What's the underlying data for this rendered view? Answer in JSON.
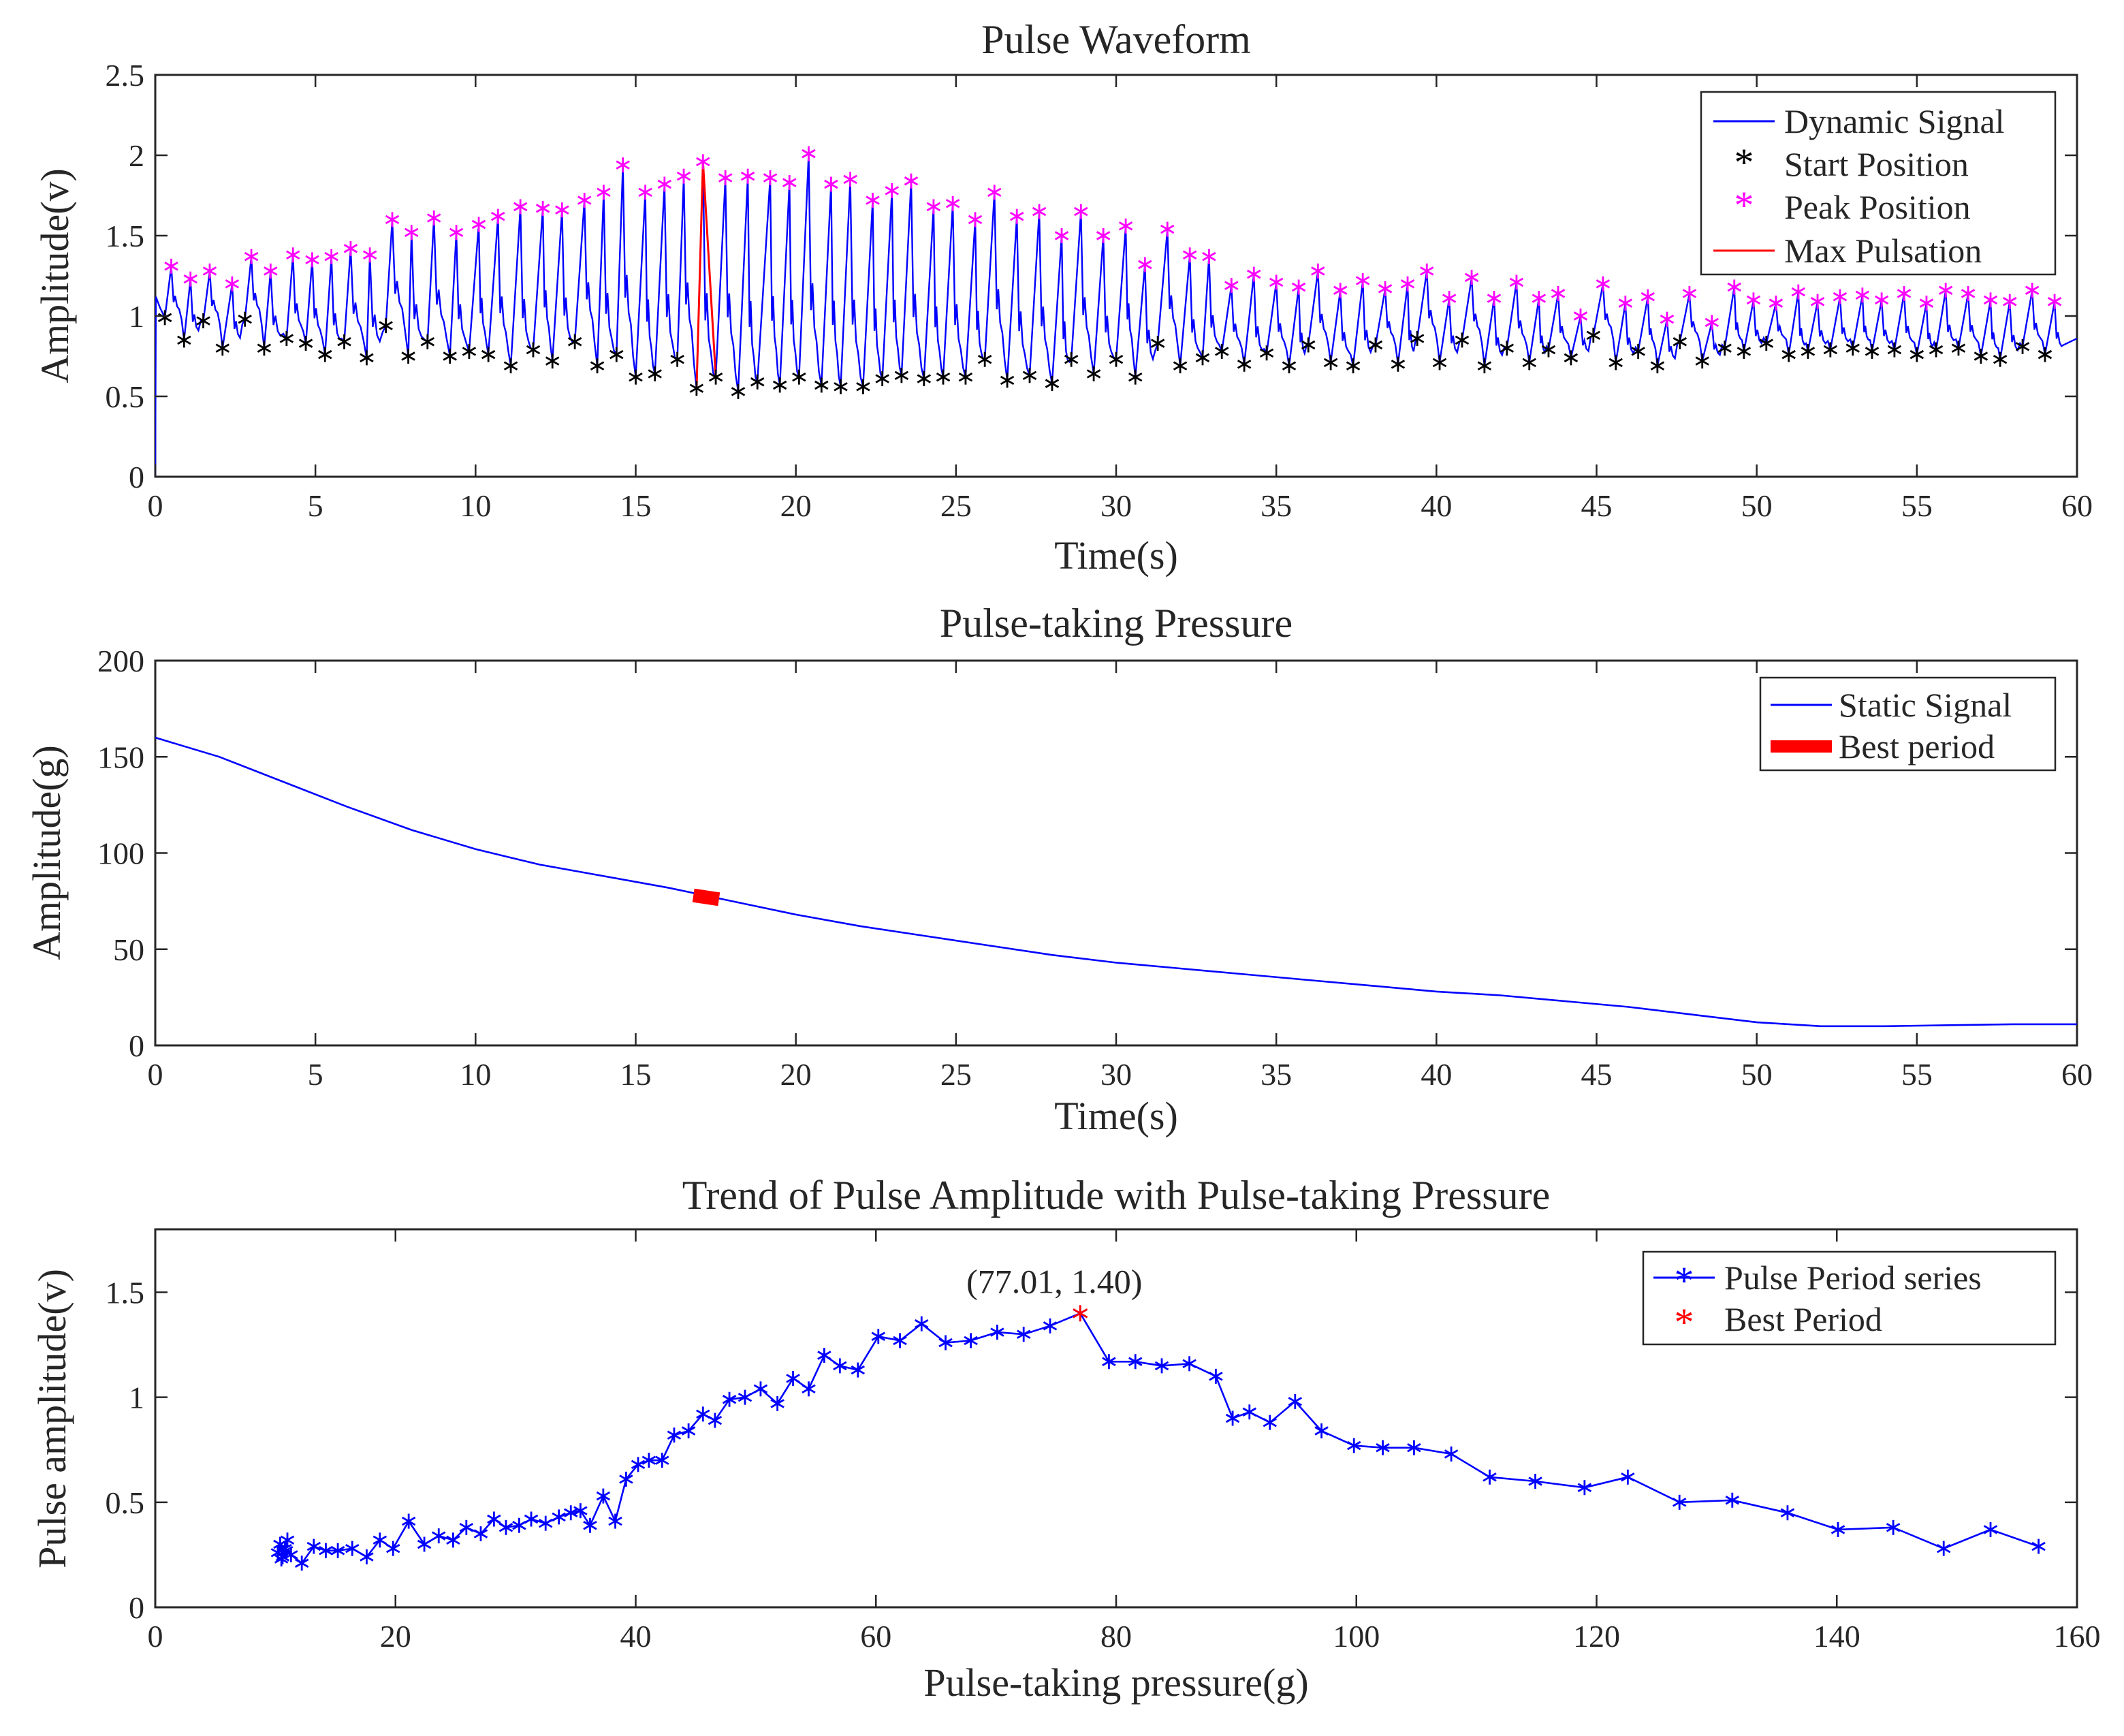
{
  "chart_data": [
    {
      "id": "waveform",
      "type": "line",
      "title": "Pulse Waveform",
      "xlabel": "Time(s)",
      "ylabel": "Amplitude(v)",
      "xlim": [
        0,
        60
      ],
      "ylim": [
        0,
        2.5
      ],
      "xticks": [
        0,
        5,
        10,
        15,
        20,
        25,
        30,
        35,
        40,
        45,
        50,
        55,
        60
      ],
      "xtick_labels": [
        "0",
        "5",
        "10",
        "15",
        "20",
        "25",
        "30",
        "35",
        "40",
        "45",
        "50",
        "55",
        "60"
      ],
      "yticks": [
        0,
        0.5,
        1,
        1.5,
        2,
        2.5
      ],
      "ytick_labels": [
        "0",
        "0.5",
        "1",
        "1.5",
        "2",
        "2.5"
      ],
      "legend": [
        {
          "label": "Dynamic Signal",
          "color": "#0000ff",
          "marker": "line"
        },
        {
          "label": "Start Position",
          "color": "#000000",
          "marker": "star"
        },
        {
          "label": "Peak Position",
          "color": "#ff00ff",
          "marker": "star"
        },
        {
          "label": "Max Pulsation",
          "color": "#ff0000",
          "marker": "line"
        }
      ],
      "legend_position": "top-right",
      "series": [
        {
          "name": "Peak Position",
          "t": [
            0.5,
            1.1,
            1.7,
            2.4,
            3.0,
            3.6,
            4.3,
            4.9,
            5.5,
            6.1,
            6.7,
            7.4,
            8.0,
            8.7,
            9.4,
            10.1,
            10.7,
            11.4,
            12.1,
            12.7,
            13.4,
            14.0,
            14.6,
            15.3,
            15.9,
            16.5,
            17.1,
            17.8,
            18.5,
            19.2,
            19.8,
            20.4,
            21.1,
            21.7,
            22.4,
            23.0,
            23.6,
            24.3,
            24.9,
            25.6,
            26.2,
            26.9,
            27.6,
            28.3,
            28.9,
            29.6,
            30.3,
            30.9,
            31.6,
            32.3,
            32.9,
            33.6,
            34.3,
            35.0,
            35.7,
            36.3,
            37.0,
            37.7,
            38.4,
            39.1,
            39.7,
            40.4,
            41.1,
            41.8,
            42.5,
            43.2,
            43.8,
            44.5,
            45.2,
            45.9,
            46.6,
            47.2,
            47.9,
            48.6,
            49.3,
            49.9,
            50.6,
            51.3,
            51.9,
            52.6,
            53.3,
            53.9,
            54.6,
            55.3,
            55.9,
            56.6,
            57.3,
            57.9,
            58.6,
            59.3
          ],
          "v": [
            1.31,
            1.23,
            1.28,
            1.2,
            1.37,
            1.28,
            1.38,
            1.35,
            1.37,
            1.42,
            1.38,
            1.6,
            1.52,
            1.61,
            1.52,
            1.57,
            1.62,
            1.68,
            1.67,
            1.66,
            1.72,
            1.77,
            1.94,
            1.77,
            1.82,
            1.87,
            1.96,
            1.86,
            1.87,
            1.86,
            1.83,
            2.01,
            1.82,
            1.85,
            1.72,
            1.78,
            1.84,
            1.68,
            1.7,
            1.6,
            1.77,
            1.62,
            1.65,
            1.5,
            1.65,
            1.5,
            1.56,
            1.32,
            1.54,
            1.38,
            1.37,
            1.19,
            1.26,
            1.21,
            1.18,
            1.28,
            1.16,
            1.22,
            1.17,
            1.2,
            1.28,
            1.11,
            1.24,
            1.11,
            1.21,
            1.11,
            1.14,
            1.0,
            1.2,
            1.08,
            1.12,
            0.98,
            1.14,
            0.96,
            1.18,
            1.1,
            1.08,
            1.15,
            1.09,
            1.12,
            1.13,
            1.1,
            1.14,
            1.08,
            1.16,
            1.14,
            1.1,
            1.09,
            1.16,
            1.09
          ]
        },
        {
          "name": "Start Position",
          "t": [
            0.3,
            0.9,
            1.5,
            2.1,
            2.8,
            3.4,
            4.1,
            4.7,
            5.3,
            5.9,
            6.6,
            7.2,
            7.9,
            8.5,
            9.2,
            9.8,
            10.4,
            11.1,
            11.8,
            12.4,
            13.1,
            13.8,
            14.4,
            15.0,
            15.6,
            16.3,
            16.9,
            17.5,
            18.2,
            18.8,
            19.5,
            20.1,
            20.8,
            21.4,
            22.1,
            22.7,
            23.3,
            24.0,
            24.6,
            25.3,
            25.9,
            26.6,
            27.3,
            28.0,
            28.6,
            29.3,
            30.0,
            30.6,
            31.3,
            32.0,
            32.7,
            33.3,
            34.0,
            34.7,
            35.4,
            36.0,
            36.7,
            37.4,
            38.1,
            38.8,
            39.4,
            40.1,
            40.8,
            41.5,
            42.2,
            42.9,
            43.5,
            44.2,
            44.9,
            45.6,
            46.3,
            46.9,
            47.6,
            48.3,
            49.0,
            49.6,
            50.3,
            51.0,
            51.6,
            52.3,
            53.0,
            53.6,
            54.3,
            55.0,
            55.6,
            56.3,
            57.0,
            57.6,
            58.3,
            59.0
          ],
          "v": [
            0.99,
            0.85,
            0.97,
            0.8,
            0.98,
            0.8,
            0.86,
            0.83,
            0.76,
            0.84,
            0.74,
            0.94,
            0.75,
            0.84,
            0.75,
            0.78,
            0.76,
            0.69,
            0.79,
            0.72,
            0.84,
            0.69,
            0.76,
            0.62,
            0.64,
            0.73,
            0.55,
            0.62,
            0.53,
            0.59,
            0.57,
            0.62,
            0.57,
            0.56,
            0.56,
            0.61,
            0.63,
            0.61,
            0.62,
            0.62,
            0.73,
            0.6,
            0.63,
            0.58,
            0.73,
            0.64,
            0.73,
            0.62,
            0.83,
            0.69,
            0.74,
            0.78,
            0.7,
            0.77,
            0.69,
            0.82,
            0.71,
            0.69,
            0.82,
            0.7,
            0.86,
            0.71,
            0.85,
            0.69,
            0.8,
            0.71,
            0.79,
            0.74,
            0.88,
            0.71,
            0.78,
            0.69,
            0.84,
            0.72,
            0.8,
            0.78,
            0.83,
            0.76,
            0.78,
            0.79,
            0.8,
            0.78,
            0.79,
            0.76,
            0.79,
            0.8,
            0.75,
            0.73,
            0.81,
            0.76
          ]
        },
        {
          "name": "Max Pulsation",
          "t": [
            16.9,
            17.1,
            17.5
          ],
          "v": [
            0.55,
            1.96,
            0.62
          ]
        }
      ]
    },
    {
      "id": "pressure",
      "type": "line",
      "title": "Pulse-taking Pressure",
      "xlabel": "Time(s)",
      "ylabel": "Amplitude(g)",
      "xlim": [
        0,
        60
      ],
      "ylim": [
        0,
        200
      ],
      "xticks": [
        0,
        5,
        10,
        15,
        20,
        25,
        30,
        35,
        40,
        45,
        50,
        55,
        60
      ],
      "xtick_labels": [
        "0",
        "5",
        "10",
        "15",
        "20",
        "25",
        "30",
        "35",
        "40",
        "45",
        "50",
        "55",
        "60"
      ],
      "yticks": [
        0,
        50,
        100,
        150,
        200
      ],
      "ytick_labels": [
        "0",
        "50",
        "100",
        "150",
        "200"
      ],
      "legend": [
        {
          "label": "Static Signal",
          "color": "#0000ff",
          "marker": "line"
        },
        {
          "label": "Best period",
          "color": "#ff0000",
          "marker": "thick-line"
        }
      ],
      "legend_position": "top-right",
      "series": [
        {
          "name": "Static Signal",
          "x": [
            0,
            2,
            4,
            6,
            8,
            10,
            12,
            14,
            16,
            18,
            20,
            22,
            24,
            26,
            28,
            30,
            32,
            34,
            36,
            38,
            40,
            42,
            44,
            46,
            48,
            50,
            52,
            54,
            56,
            58,
            60
          ],
          "y": [
            160,
            150,
            137,
            124,
            112,
            102,
            94,
            88,
            82,
            75,
            68,
            62,
            57,
            52,
            47,
            43,
            40,
            37,
            34,
            31,
            28,
            26,
            23,
            20,
            16,
            12,
            10,
            10,
            10.5,
            11,
            11
          ]
        },
        {
          "name": "Best period",
          "x": [
            16.8,
            17.6
          ],
          "y": [
            78,
            76
          ]
        }
      ]
    },
    {
      "id": "trend",
      "type": "line",
      "title": "Trend of Pulse Amplitude with Pulse-taking Pressure",
      "xlabel": "Pulse-taking pressure(g)",
      "ylabel": "Pulse amplitude(v)",
      "xlim": [
        0,
        160
      ],
      "ylim": [
        0,
        1.8
      ],
      "xticks": [
        0,
        20,
        40,
        60,
        80,
        100,
        120,
        140,
        160
      ],
      "xtick_labels": [
        "0",
        "20",
        "40",
        "60",
        "80",
        "100",
        "120",
        "140",
        "160"
      ],
      "yticks": [
        0,
        0.5,
        1,
        1.5
      ],
      "ytick_labels": [
        "0",
        "0.5",
        "1",
        "1.5"
      ],
      "legend": [
        {
          "label": "Pulse Period series",
          "color": "#0000ff",
          "marker": "star-line"
        },
        {
          "label": "Best Period",
          "color": "#ff0000",
          "marker": "star"
        }
      ],
      "legend_position": "top-right",
      "annotation": {
        "text": "(77.01, 1.40)",
        "x": 77.01,
        "y": 1.4
      },
      "series": [
        {
          "name": "Pulse Period series",
          "x": [
            10.2,
            10.4,
            10.6,
            10.8,
            11.0,
            10.5,
            10.9,
            11.3,
            12.2,
            13.2,
            14.2,
            15.2,
            16.4,
            17.6,
            18.7,
            19.8,
            21.1,
            22.4,
            23.6,
            24.8,
            25.9,
            27.1,
            28.2,
            29.2,
            30.3,
            31.3,
            32.5,
            33.6,
            34.6,
            35.4,
            36.2,
            37.3,
            38.3,
            39.2,
            40.2,
            41.1,
            42.2,
            43.2,
            44.4,
            45.6,
            46.6,
            47.8,
            49.1,
            50.4,
            51.8,
            53.1,
            54.4,
            55.7,
            57.0,
            58.5,
            60.2,
            62.0,
            63.8,
            65.8,
            67.9,
            70.1,
            72.3,
            74.5,
            77.01,
            79.4,
            81.6,
            83.8,
            86.1,
            88.3,
            89.7,
            91.1,
            92.8,
            94.9,
            97.1,
            99.8,
            102.2,
            104.8,
            107.9,
            111.1,
            114.9,
            119.0,
            122.6,
            126.9,
            131.3,
            135.9,
            140.1,
            144.7,
            148.9,
            152.8,
            156.8
          ],
          "y": [
            0.26,
            0.3,
            0.24,
            0.28,
            0.32,
            0.23,
            0.27,
            0.25,
            0.21,
            0.29,
            0.27,
            0.27,
            0.28,
            0.24,
            0.32,
            0.28,
            0.41,
            0.3,
            0.34,
            0.32,
            0.38,
            0.35,
            0.42,
            0.38,
            0.39,
            0.42,
            0.4,
            0.43,
            0.45,
            0.46,
            0.39,
            0.53,
            0.41,
            0.61,
            0.68,
            0.7,
            0.7,
            0.82,
            0.84,
            0.92,
            0.89,
            0.99,
            1.0,
            1.04,
            0.97,
            1.09,
            1.04,
            1.2,
            1.15,
            1.13,
            1.29,
            1.27,
            1.35,
            1.26,
            1.27,
            1.31,
            1.3,
            1.34,
            1.4,
            1.17,
            1.17,
            1.15,
            1.16,
            1.1,
            0.9,
            0.93,
            0.88,
            0.98,
            0.84,
            0.77,
            0.76,
            0.76,
            0.73,
            0.62,
            0.6,
            0.57,
            0.62,
            0.5,
            0.51,
            0.45,
            0.37,
            0.38,
            0.28,
            0.37,
            0.29
          ]
        },
        {
          "name": "Best Period",
          "x": [
            77.01
          ],
          "y": [
            1.4
          ]
        }
      ]
    }
  ]
}
